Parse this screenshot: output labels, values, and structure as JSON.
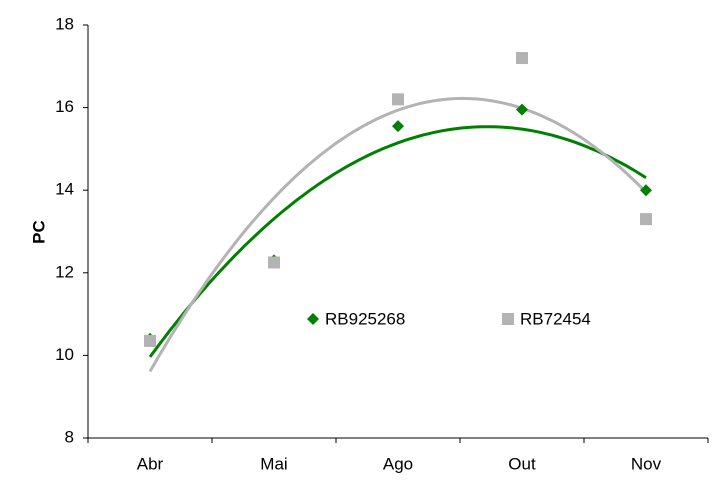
{
  "chart_data": {
    "type": "scatter",
    "y_label": "PC",
    "categories": [
      "Abr",
      "Mai",
      "Ago",
      "Out",
      "Nov"
    ],
    "series": [
      {
        "name": "RB925268",
        "color": "#008000",
        "marker": "diamond",
        "values": [
          10.4,
          12.3,
          15.55,
          15.95,
          14.0
        ]
      },
      {
        "name": "RB72454",
        "color": "#b3b3b3",
        "marker": "square",
        "values": [
          10.35,
          12.25,
          16.2,
          17.2,
          13.3
        ]
      }
    ],
    "trendline": "polynomial",
    "trendline_order": 2,
    "ylim": [
      8,
      18
    ],
    "yticks": [
      8,
      10,
      12,
      14,
      16,
      18
    ],
    "grid": false,
    "legend": "inside"
  }
}
